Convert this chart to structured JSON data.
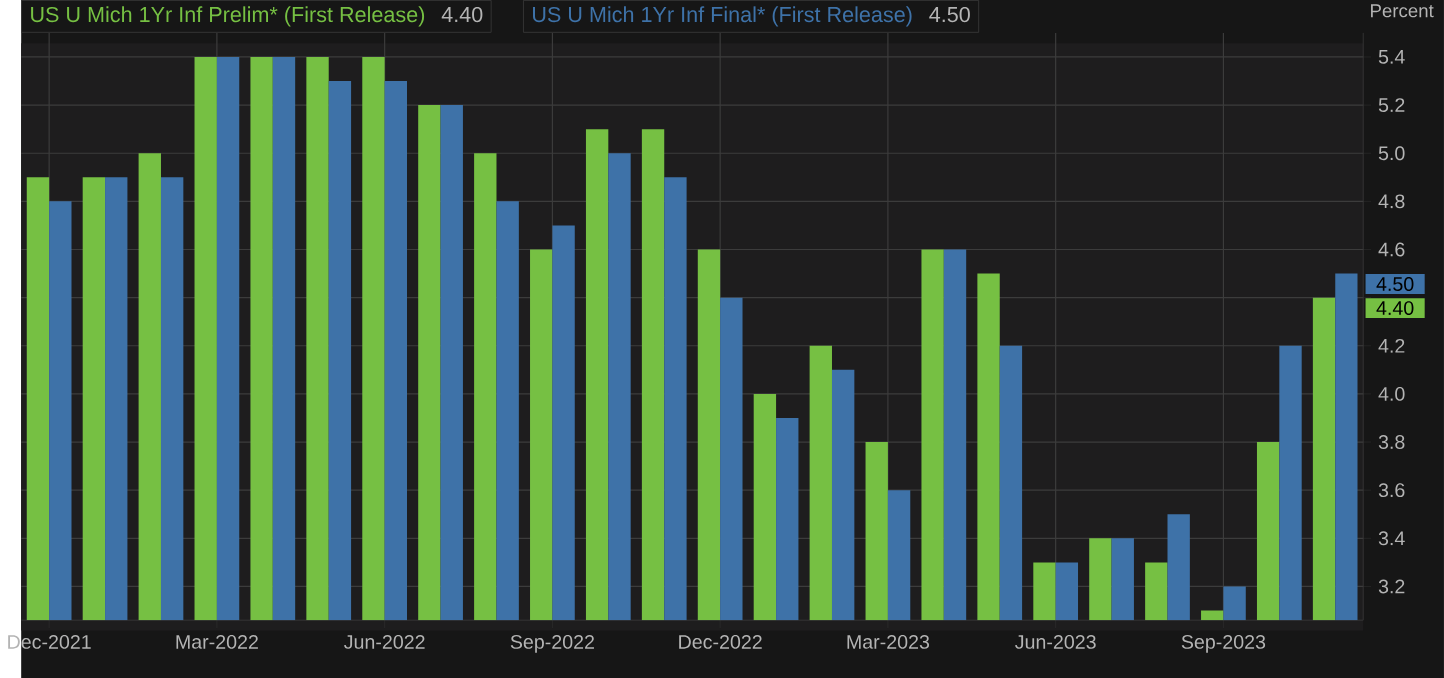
{
  "chart_data": {
    "type": "bar",
    "categories": [
      "Dec-2021",
      null,
      null,
      "Mar-2022",
      null,
      null,
      "Jun-2022",
      null,
      null,
      "Sep-2022",
      null,
      null,
      "Dec-2022",
      null,
      null,
      "Mar-2023",
      null,
      null,
      "Jun-2023",
      null,
      null,
      "Sep-2023",
      null,
      null
    ],
    "series": [
      {
        "name": "US U Mich 1Yr Inf Prelim* (First Release)",
        "color": "#76c043",
        "values": [
          4.9,
          4.9,
          5.0,
          5.4,
          5.4,
          5.4,
          5.4,
          5.2,
          5.0,
          4.6,
          5.1,
          5.1,
          4.6,
          4.0,
          4.2,
          3.8,
          4.6,
          4.5,
          3.3,
          3.4,
          3.3,
          3.1,
          3.8,
          4.4
        ]
      },
      {
        "name": "US U Mich 1Yr Inf Final* (First Release)",
        "color": "#3e72a8",
        "values": [
          4.8,
          4.9,
          4.9,
          5.4,
          5.4,
          5.3,
          5.3,
          5.2,
          4.8,
          4.7,
          5.0,
          4.9,
          4.4,
          3.9,
          4.1,
          3.6,
          4.6,
          4.2,
          3.3,
          3.4,
          3.5,
          3.2,
          4.2,
          4.5
        ]
      }
    ],
    "ylabel": "Percent",
    "ylim": [
      3.06,
      5.5
    ],
    "yticks": [
      3.2,
      3.4,
      3.6,
      3.8,
      {
        "value": 4.0,
        "label": "4.0"
      },
      4.2,
      {
        "value": 4.4,
        "label": null
      },
      4.6,
      4.8,
      {
        "value": 5.0,
        "label": "5.0"
      },
      5.2,
      5.4
    ],
    "grid": true,
    "legend": "top left",
    "annotations": [
      "4.40",
      "4.50",
      "4.40",
      "4.50"
    ]
  }
}
